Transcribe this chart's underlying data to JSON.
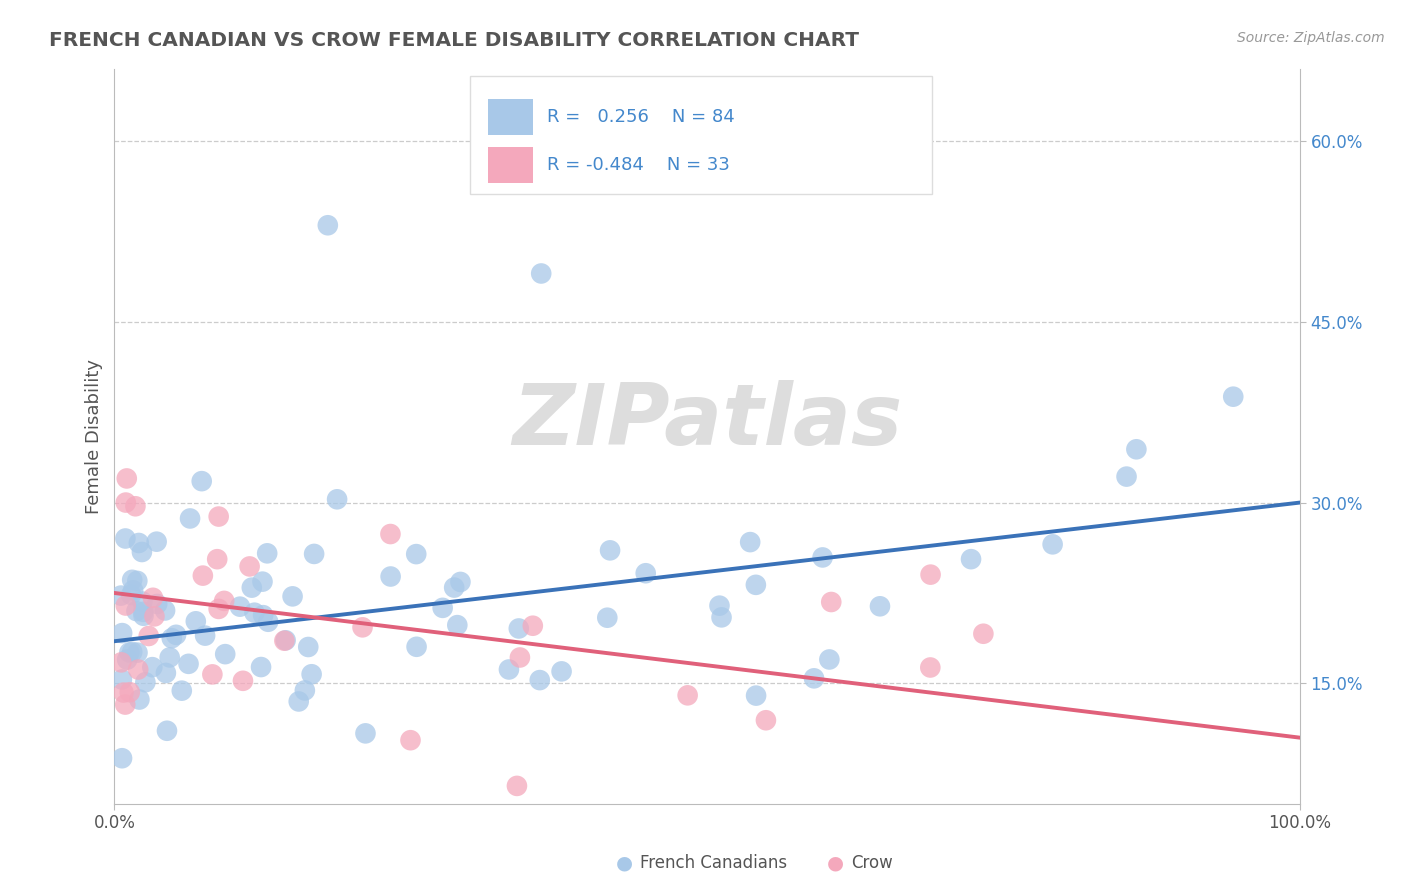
{
  "title": "FRENCH CANADIAN VS CROW FEMALE DISABILITY CORRELATION CHART",
  "source": "Source: ZipAtlas.com",
  "ylabel": "Female Disability",
  "legend_label1": "French Canadians",
  "legend_label2": "Crow",
  "r1": 0.256,
  "n1": 84,
  "r2": -0.484,
  "n2": 33,
  "color_blue": "#A8C8E8",
  "color_pink": "#F4A8BC",
  "line_blue": "#3A72B8",
  "line_pink": "#E0607A",
  "title_color": "#555555",
  "label_color": "#555555",
  "watermark_color": "#DDDDDD",
  "ytick_color": "#4488CC",
  "yticks": [
    0.15,
    0.3,
    0.45,
    0.6
  ],
  "ytick_labels": [
    "15.0%",
    "30.0%",
    "45.0%",
    "60.0%"
  ],
  "xlim": [
    0.0,
    1.0
  ],
  "ylim": [
    0.05,
    0.66
  ],
  "blue_line_y0": 0.185,
  "blue_line_y1": 0.3,
  "pink_line_y0": 0.225,
  "pink_line_y1": 0.105
}
